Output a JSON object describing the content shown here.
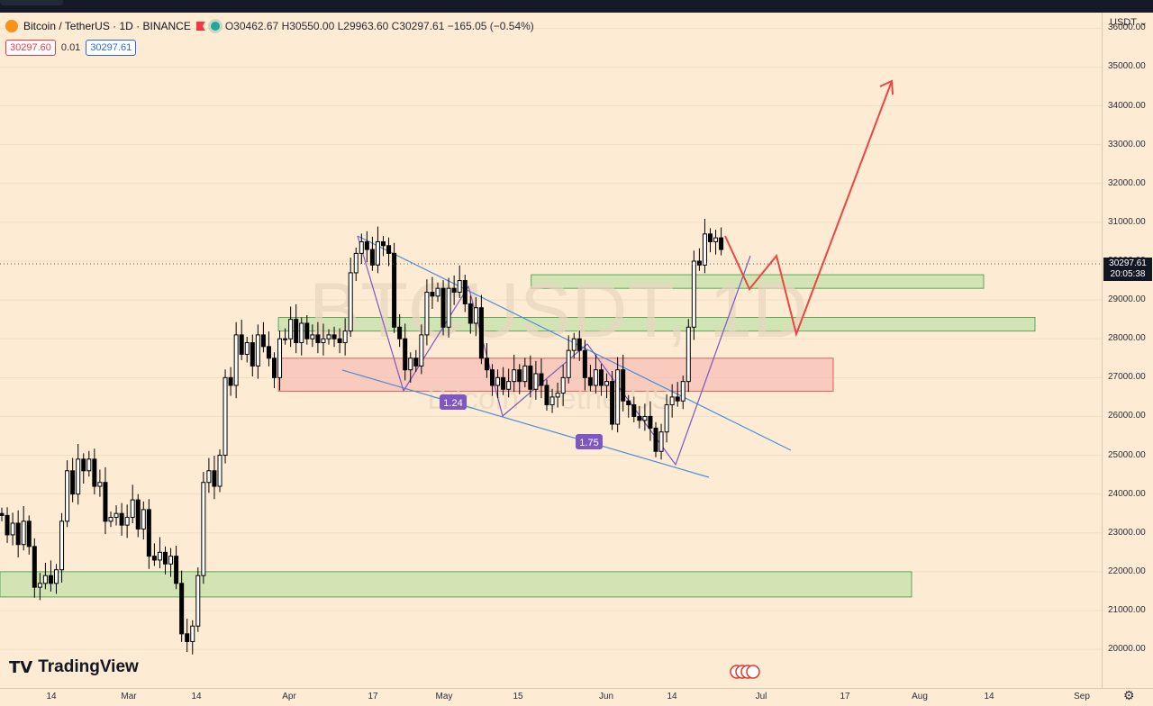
{
  "header": {
    "symbol": "Bitcoin / TetherUS · 1D · BINANCE",
    "ohlc": "O30462.67 H30550.00 L29963.60 C30297.61 −165.05 (−0.54%)",
    "sell_price": "30297.60",
    "spread": "0.01",
    "buy_price": "30297.61"
  },
  "axis": {
    "currency": "USDT",
    "last_price": "30297.61",
    "countdown": "20:05:38"
  },
  "watermark": {
    "main": "BTCUSDT, 1D",
    "sub": "Bitcoin / TetherUS"
  },
  "brand": "TradingView",
  "colors": {
    "up": "#ffffff",
    "down": "#000000",
    "support_zone": "#b7e0a0",
    "resistance_zone": "#f7b4b0",
    "trendline": "#4a90d9",
    "pattern": "#7e57c2",
    "projection": "#ef4444"
  },
  "chart_data": {
    "type": "candlestick",
    "ylim": [
      19700,
      36800
    ],
    "yticks": [
      20000,
      21000,
      22000,
      23000,
      24000,
      25000,
      26000,
      27000,
      28000,
      29000,
      30000,
      31000,
      32000,
      33000,
      34000,
      35000,
      36000
    ],
    "yticklabels": [
      "20000.00",
      "21000.00",
      "22000.00",
      "23000.00",
      "24000.00",
      "25000.00",
      "26000.00",
      "27000.00",
      "28000.00",
      "29000.00",
      "30000.00",
      "31000.00",
      "32000.00",
      "33000.00",
      "34000.00",
      "35000.00",
      "36000.00"
    ],
    "xticks": [
      "14",
      "Mar",
      "14",
      "Apr",
      "17",
      "May",
      "15",
      "Jun",
      "14",
      "Jul",
      "17",
      "Aug",
      "14",
      "Sep"
    ],
    "candles": [
      [
        23500,
        23450
      ],
      [
        23450,
        22950
      ],
      [
        22950,
        23250
      ],
      [
        23250,
        22700
      ],
      [
        22700,
        23300
      ],
      [
        23300,
        22650
      ],
      [
        22650,
        21600
      ],
      [
        21600,
        21700
      ],
      [
        21700,
        21900
      ],
      [
        21900,
        21700
      ],
      [
        21700,
        22050
      ],
      [
        22050,
        23300
      ],
      [
        23300,
        24600
      ],
      [
        24600,
        24000
      ],
      [
        24000,
        24900
      ],
      [
        24900,
        24600
      ],
      [
        24600,
        24900
      ],
      [
        24900,
        24200
      ],
      [
        24200,
        24300
      ],
      [
        24300,
        23300
      ],
      [
        23300,
        23400
      ],
      [
        23400,
        23500
      ],
      [
        23500,
        23200
      ],
      [
        23200,
        23400
      ],
      [
        23400,
        23850
      ],
      [
        23850,
        23100
      ],
      [
        23100,
        23600
      ],
      [
        23600,
        22400
      ],
      [
        22400,
        22300
      ],
      [
        22300,
        22500
      ],
      [
        22500,
        22200
      ],
      [
        22200,
        22400
      ],
      [
        22400,
        21700
      ],
      [
        21700,
        20400
      ],
      [
        20400,
        20200
      ],
      [
        20200,
        20600
      ],
      [
        20600,
        21900
      ],
      [
        21900,
        24300
      ],
      [
        24300,
        24600
      ],
      [
        24600,
        24200
      ],
      [
        24200,
        25000
      ],
      [
        25000,
        27000
      ],
      [
        27000,
        26800
      ],
      [
        26800,
        28100
      ],
      [
        28100,
        27600
      ],
      [
        27600,
        27900
      ],
      [
        27900,
        27300
      ],
      [
        27300,
        28100
      ],
      [
        28100,
        27800
      ],
      [
        27800,
        27500
      ],
      [
        27500,
        27000
      ],
      [
        27000,
        28000
      ],
      [
        28000,
        28000
      ],
      [
        28000,
        28500
      ],
      [
        28500,
        27900
      ],
      [
        27900,
        28400
      ],
      [
        28400,
        28000
      ],
      [
        28000,
        28100
      ],
      [
        28100,
        27900
      ],
      [
        27900,
        28000
      ],
      [
        28000,
        28100
      ],
      [
        28100,
        28000
      ],
      [
        28000,
        27900
      ],
      [
        27900,
        28200
      ],
      [
        28200,
        29700
      ],
      [
        29700,
        30200
      ],
      [
        30200,
        30500
      ],
      [
        30500,
        30300
      ],
      [
        30300,
        29900
      ],
      [
        29900,
        30500
      ],
      [
        30500,
        30400
      ],
      [
        30400,
        30200
      ],
      [
        30200,
        28300
      ],
      [
        28300,
        28000
      ],
      [
        28000,
        27200
      ],
      [
        27200,
        27500
      ],
      [
        27500,
        27300
      ],
      [
        27300,
        28100
      ],
      [
        28100,
        29200
      ],
      [
        29200,
        29100
      ],
      [
        29100,
        29300
      ],
      [
        29300,
        28300
      ],
      [
        28300,
        29300
      ],
      [
        29300,
        29200
      ],
      [
        29200,
        29500
      ],
      [
        29500,
        28900
      ],
      [
        28900,
        28400
      ],
      [
        28400,
        28800
      ],
      [
        28800,
        27500
      ],
      [
        27500,
        27200
      ],
      [
        27200,
        26800
      ],
      [
        26800,
        27000
      ],
      [
        27000,
        26700
      ],
      [
        26700,
        26900
      ],
      [
        26900,
        27200
      ],
      [
        27200,
        26900
      ],
      [
        26900,
        27300
      ],
      [
        27300,
        26700
      ],
      [
        26700,
        27100
      ],
      [
        27100,
        26800
      ],
      [
        26800,
        26300
      ],
      [
        26300,
        26500
      ],
      [
        26500,
        26600
      ],
      [
        26600,
        27000
      ],
      [
        27000,
        27700
      ],
      [
        27700,
        28000
      ],
      [
        28000,
        27700
      ],
      [
        27700,
        27000
      ],
      [
        27000,
        26800
      ],
      [
        26800,
        27200
      ],
      [
        27200,
        26800
      ],
      [
        26800,
        26900
      ],
      [
        26900,
        25800
      ],
      [
        25800,
        27200
      ],
      [
        27200,
        26400
      ],
      [
        26400,
        26300
      ],
      [
        26300,
        26000
      ],
      [
        26000,
        25900
      ],
      [
        25900,
        26000
      ],
      [
        26000,
        25700
      ],
      [
        25700,
        25100
      ],
      [
        25100,
        25600
      ],
      [
        25600,
        26300
      ],
      [
        26300,
        26500
      ],
      [
        26500,
        26400
      ],
      [
        26400,
        26900
      ],
      [
        26900,
        28300
      ],
      [
        28300,
        30000
      ],
      [
        30000,
        29900
      ],
      [
        29900,
        30700
      ],
      [
        30700,
        30500
      ],
      [
        30500,
        30600
      ],
      [
        30600,
        30300
      ]
    ],
    "zones": [
      {
        "kind": "support",
        "from_index": 97,
        "to_index": 233,
        "low": 29300,
        "high": 29650
      },
      {
        "kind": "support",
        "from_index": 51,
        "to_index": 249,
        "low": 28200,
        "high": 28550
      },
      {
        "kind": "resistance",
        "from_index": 51,
        "to_index": 203,
        "low": 26650,
        "high": 27500
      },
      {
        "kind": "support",
        "from_index": 0,
        "to_index": 220,
        "low": 21350,
        "high": 22000
      }
    ],
    "annotations": [
      {
        "text": "1.24"
      },
      {
        "text": "1.75"
      }
    ],
    "projection": [
      [
        29600,
        31000
      ],
      [
        28450,
        30450
      ],
      [
        34950,
        30450
      ]
    ]
  }
}
